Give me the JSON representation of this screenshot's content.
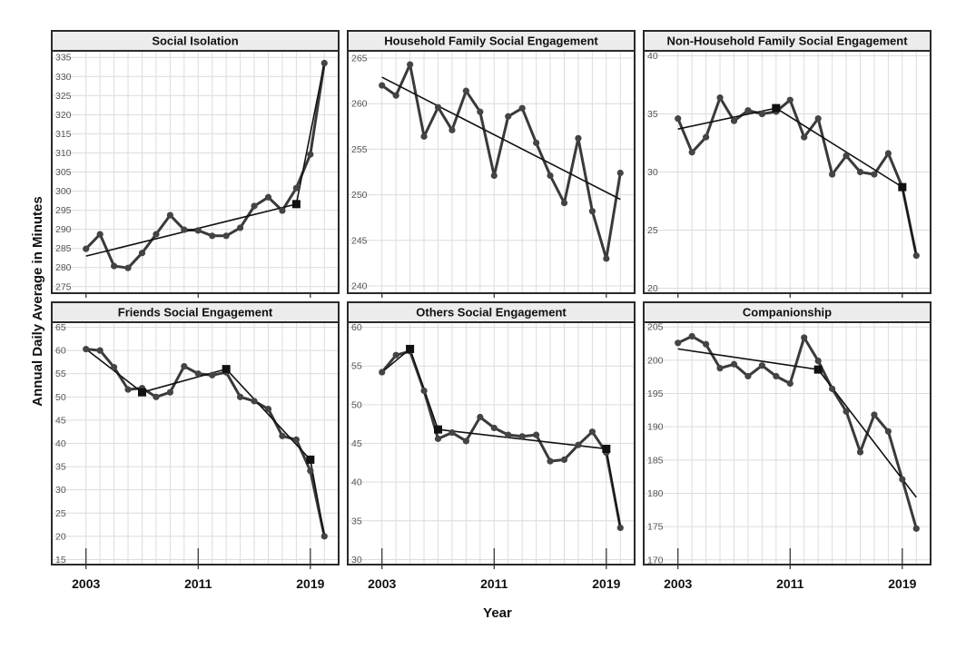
{
  "xlabel": "Year",
  "ylabel": "Annual Daily Average in Minutes",
  "x_ticks": [
    2003,
    2011,
    2019
  ],
  "chart_data": [
    {
      "type": "line",
      "title": "Social Isolation",
      "ylim": [
        274,
        336
      ],
      "yticks": [
        275,
        280,
        285,
        290,
        295,
        300,
        305,
        310,
        315,
        320,
        325,
        330,
        335
      ],
      "x": [
        2003,
        2004,
        2005,
        2006,
        2007,
        2008,
        2009,
        2010,
        2011,
        2012,
        2013,
        2014,
        2015,
        2016,
        2017,
        2018,
        2019,
        2020
      ],
      "values": [
        284.9,
        288.7,
        280.4,
        279.9,
        283.8,
        288.7,
        293.7,
        289.9,
        289.7,
        288.3,
        288.3,
        290.4,
        296.1,
        298.4,
        294.9,
        300.8,
        309.6,
        333.5
      ],
      "joinpoints": [
        {
          "x": 2018,
          "y": 296.6
        }
      ],
      "trend": [
        {
          "x0": 2003,
          "y0": 283.0,
          "x1": 2018,
          "y1": 296.6
        },
        {
          "x0": 2018,
          "y0": 296.6,
          "x1": 2020,
          "y1": 333.5
        }
      ]
    },
    {
      "type": "line",
      "title": "Household Family Social Engagement",
      "ylim": [
        239.5,
        265.5
      ],
      "yticks": [
        240,
        245,
        250,
        255,
        260,
        265
      ],
      "x": [
        2003,
        2004,
        2005,
        2006,
        2007,
        2008,
        2009,
        2010,
        2011,
        2012,
        2013,
        2014,
        2015,
        2016,
        2017,
        2018,
        2019,
        2020
      ],
      "values": [
        262.0,
        260.9,
        264.3,
        256.4,
        259.6,
        257.1,
        261.4,
        259.1,
        252.1,
        258.6,
        259.5,
        255.7,
        252.1,
        249.1,
        256.2,
        248.2,
        243.0,
        252.4
      ],
      "joinpoints": [],
      "trend": [
        {
          "x0": 2003,
          "y0": 262.9,
          "x1": 2020,
          "y1": 249.5
        }
      ]
    },
    {
      "type": "line",
      "title": "Non-Household Family Social Engagement",
      "ylim": [
        19.8,
        40.2
      ],
      "yticks": [
        20,
        25,
        30,
        35,
        40
      ],
      "x": [
        2003,
        2004,
        2005,
        2006,
        2007,
        2008,
        2009,
        2010,
        2011,
        2012,
        2013,
        2014,
        2015,
        2016,
        2017,
        2018,
        2019,
        2020
      ],
      "values": [
        34.6,
        31.7,
        33.0,
        36.4,
        34.4,
        35.3,
        35.0,
        35.2,
        36.2,
        33.0,
        34.6,
        29.8,
        31.4,
        30.0,
        29.8,
        31.6,
        28.7,
        22.8
      ],
      "joinpoints": [
        {
          "x": 2010,
          "y": 35.5
        },
        {
          "x": 2019,
          "y": 28.7
        }
      ],
      "trend": [
        {
          "x0": 2003,
          "y0": 33.7,
          "x1": 2010,
          "y1": 35.5
        },
        {
          "x0": 2010,
          "y0": 35.5,
          "x1": 2019,
          "y1": 28.7
        },
        {
          "x0": 2019,
          "y0": 28.7,
          "x1": 2020,
          "y1": 22.8
        }
      ]
    },
    {
      "type": "line",
      "title": "Friends Social Engagement",
      "ylim": [
        14.5,
        65.5
      ],
      "yticks": [
        15,
        20,
        25,
        30,
        35,
        40,
        45,
        50,
        55,
        60,
        65
      ],
      "x": [
        2003,
        2004,
        2005,
        2006,
        2007,
        2008,
        2009,
        2010,
        2011,
        2012,
        2013,
        2014,
        2015,
        2016,
        2017,
        2018,
        2019,
        2020
      ],
      "values": [
        60.3,
        60.0,
        56.4,
        51.6,
        51.9,
        50.0,
        51.0,
        56.6,
        55.0,
        54.7,
        55.3,
        50.0,
        49.1,
        47.4,
        41.6,
        40.8,
        34.1,
        20.0
      ],
      "joinpoints": [
        {
          "x": 2007,
          "y": 51.0
        },
        {
          "x": 2013,
          "y": 56.0
        },
        {
          "x": 2019,
          "y": 36.5
        }
      ],
      "trend": [
        {
          "x0": 2003,
          "y0": 60.3,
          "x1": 2007,
          "y1": 51.0
        },
        {
          "x0": 2007,
          "y0": 51.0,
          "x1": 2013,
          "y1": 56.0
        },
        {
          "x0": 2013,
          "y0": 56.0,
          "x1": 2019,
          "y1": 36.5
        },
        {
          "x0": 2019,
          "y0": 36.5,
          "x1": 2020,
          "y1": 20.0
        }
      ]
    },
    {
      "type": "line",
      "title": "Others Social Engagement",
      "ylim": [
        29.7,
        60.3
      ],
      "yticks": [
        30,
        35,
        40,
        45,
        50,
        55,
        60
      ],
      "x": [
        2003,
        2004,
        2005,
        2006,
        2007,
        2008,
        2009,
        2010,
        2011,
        2012,
        2013,
        2014,
        2015,
        2016,
        2017,
        2018,
        2019,
        2020
      ],
      "values": [
        54.2,
        56.4,
        56.9,
        51.8,
        45.6,
        46.4,
        45.3,
        48.4,
        47.0,
        46.1,
        45.9,
        46.1,
        42.7,
        42.9,
        44.8,
        46.5,
        43.8,
        34.1
      ],
      "joinpoints": [
        {
          "x": 2005,
          "y": 57.2
        },
        {
          "x": 2007,
          "y": 46.8
        },
        {
          "x": 2019,
          "y": 44.3
        }
      ],
      "trend": [
        {
          "x0": 2003,
          "y0": 54.2,
          "x1": 2005,
          "y1": 57.2
        },
        {
          "x0": 2005,
          "y0": 57.2,
          "x1": 2007,
          "y1": 46.8
        },
        {
          "x0": 2007,
          "y0": 46.8,
          "x1": 2019,
          "y1": 44.3
        },
        {
          "x0": 2019,
          "y0": 44.3,
          "x1": 2020,
          "y1": 34.1
        }
      ]
    },
    {
      "type": "line",
      "title": "Companionship",
      "ylim": [
        169.7,
        205.3
      ],
      "yticks": [
        170,
        175,
        180,
        185,
        190,
        195,
        200,
        205
      ],
      "x": [
        2003,
        2004,
        2005,
        2006,
        2007,
        2008,
        2009,
        2010,
        2011,
        2012,
        2013,
        2014,
        2015,
        2016,
        2017,
        2018,
        2019,
        2020
      ],
      "values": [
        202.6,
        203.6,
        202.4,
        198.8,
        199.4,
        197.6,
        199.2,
        197.6,
        196.5,
        203.4,
        199.9,
        195.7,
        192.3,
        186.2,
        191.8,
        189.3,
        182.1,
        174.7
      ],
      "joinpoints": [
        {
          "x": 2013,
          "y": 198.6
        }
      ],
      "trend": [
        {
          "x0": 2003,
          "y0": 201.7,
          "x1": 2013,
          "y1": 198.6
        },
        {
          "x0": 2013,
          "y0": 198.6,
          "x1": 2020,
          "y1": 179.4
        }
      ]
    }
  ]
}
